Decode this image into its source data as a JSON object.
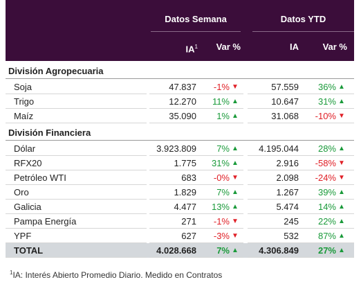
{
  "header": {
    "group1": "Datos Semana",
    "group2": "Datos YTD",
    "col_ia": "IA",
    "ia_note": "1",
    "col_var": "Var %",
    "col_ia2": "IA",
    "col_var2": "Var %"
  },
  "sections": [
    {
      "title": "División Agropecuaria",
      "rows": [
        [
          "Soja",
          "47.837",
          "-1%",
          "57.559",
          "36%"
        ],
        [
          "Trigo",
          "12.270",
          "11%",
          "10.647",
          "31%"
        ],
        [
          "Maíz",
          "35.090",
          "1%",
          "31.068",
          "-10%"
        ]
      ]
    },
    {
      "title": "División Financiera",
      "rows": [
        [
          "Dólar",
          "3.923.809",
          "7%",
          "4.195.044",
          "28%"
        ],
        [
          "RFX20",
          "1.775",
          "31%",
          "2.916",
          "-58%"
        ],
        [
          "Petróleo WTI",
          "683",
          "-0%",
          "2.098",
          "-24%"
        ],
        [
          "Oro",
          "1.829",
          "7%",
          "1.267",
          "39%"
        ],
        [
          "Galicia",
          "4.477",
          "13%",
          "5.474",
          "14%"
        ],
        [
          "Pampa Energía",
          "271",
          "-1%",
          "245",
          "22%"
        ],
        [
          "YPF",
          "627",
          "-3%",
          "532",
          "87%"
        ]
      ]
    }
  ],
  "total": [
    "TOTAL",
    "4.028.668",
    "7%",
    "4.306.849",
    "27%"
  ],
  "footnote": {
    "mark": "1",
    "text": "IA: Interés Abierto Promedio Diario. Medido en Contratos"
  }
}
